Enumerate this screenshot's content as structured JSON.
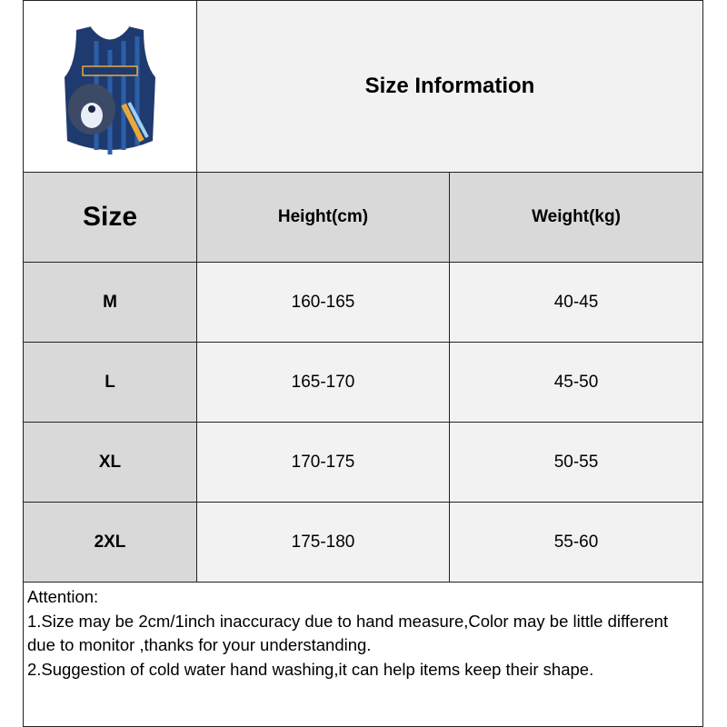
{
  "title": "Size Information",
  "product_image": {
    "icon": "basketball-jersey-bear-image",
    "colors": {
      "primary": "#1f3a6e",
      "stripe": "#2b5fa8",
      "accent": "#e8a93a"
    }
  },
  "headers": {
    "size": "Size",
    "height": "Height(cm)",
    "weight": "Weight(kg)"
  },
  "rows": [
    {
      "size": "M",
      "height": "160-165",
      "weight": "40-45"
    },
    {
      "size": "L",
      "height": "165-170",
      "weight": "45-50"
    },
    {
      "size": "XL",
      "height": "170-175",
      "weight": "50-55"
    },
    {
      "size": "2XL",
      "height": "175-180",
      "weight": "55-60"
    }
  ],
  "notes": {
    "heading": "Attention:",
    "items": [
      "1.Size may be 2cm/1inch inaccuracy due to hand measure,Color may be little different due to monitor ,thanks for your understanding.",
      "2.Suggestion of cold water hand washing,it can help items keep their shape."
    ]
  }
}
